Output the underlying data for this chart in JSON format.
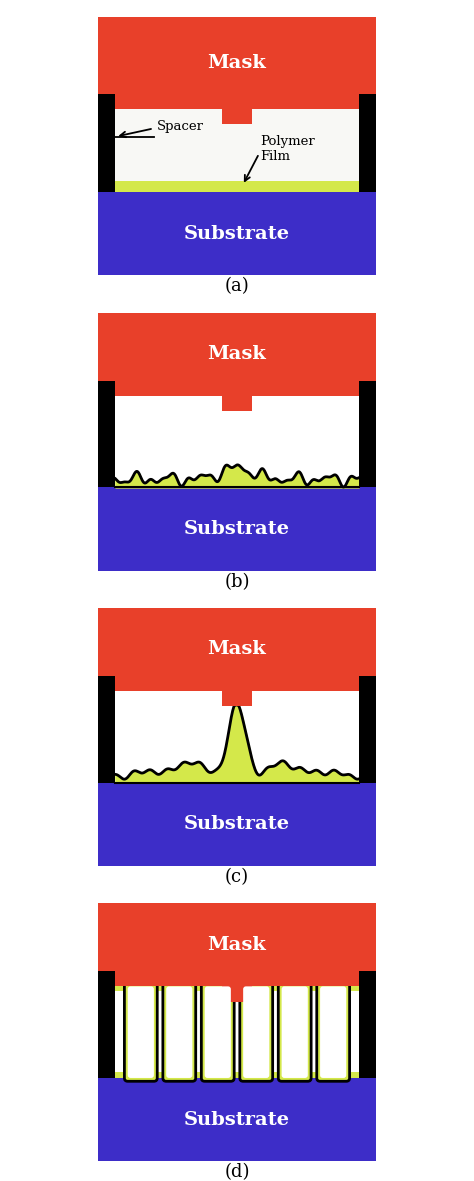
{
  "colors": {
    "mask": "#E8402A",
    "substrate": "#3D2DC8",
    "polymer": "#D4E84A",
    "spacer": "#000000",
    "background": "#FFFFFF",
    "text_white": "#FFFFFF",
    "text_black": "#000000",
    "outline": "#000000"
  },
  "mask_text": "Mask",
  "substrate_text": "Substrate",
  "label_a": "(a)",
  "label_b": "(b)",
  "label_c": "(c)",
  "label_d": "(d)",
  "spacer_label": "Spacer",
  "polymer_label": "Polymer\nFilm"
}
